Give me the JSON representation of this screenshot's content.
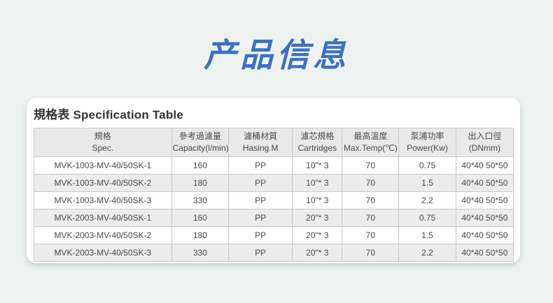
{
  "page": {
    "title": "产品信息",
    "title_color": "#3a71c6",
    "background_color": "#edf2f1"
  },
  "card": {
    "heading": "規格表 Specification Table"
  },
  "table": {
    "columns": [
      {
        "zh": "規格",
        "en": "Spec.",
        "width": "28.7%"
      },
      {
        "zh": "參考過濾量",
        "en": "Capacity(l/min)",
        "width": "11.9%"
      },
      {
        "zh": "濾桶材質",
        "en": "Hasing.M",
        "width": "13.3%"
      },
      {
        "zh": "濾芯規格",
        "en": "Cartridges",
        "width": "10.4%"
      },
      {
        "zh": "最高溫度",
        "en": "Max.Temp(℃)",
        "width": "11.8%"
      },
      {
        "zh": "泵浦功率",
        "en": "Power(Kw)",
        "width": "11.9%"
      },
      {
        "zh": "出入口徑",
        "en": "(DNmm)",
        "width": "12.0%"
      }
    ],
    "rows": [
      [
        "MVK-1003-MV-40/50SK-1",
        "160",
        "PP",
        "10\"* 3",
        "70",
        "0.75",
        "40*40 50*50"
      ],
      [
        "MVK-1003-MV-40/50SK-2",
        "180",
        "PP",
        "10\"* 3",
        "70",
        "1.5",
        "40*40 50*50"
      ],
      [
        "MVK-1003-MV-40/50SK-3",
        "330",
        "PP",
        "10\"* 3",
        "70",
        "2.2",
        "40*40 50*50"
      ],
      [
        "MVK-2003-MV-40/50SK-1",
        "160",
        "PP",
        "20\"* 3",
        "70",
        "0.75",
        "40*40 50*50"
      ],
      [
        "MVK-2003-MV-40/50SK-2",
        "180",
        "PP",
        "20\"* 3",
        "70",
        "1.5",
        "40*40 50*50"
      ],
      [
        "MVK-2003-MV-40/50SK-3",
        "330",
        "PP",
        "20\"* 3",
        "70",
        "2.2",
        "40*40 50*50"
      ]
    ]
  }
}
